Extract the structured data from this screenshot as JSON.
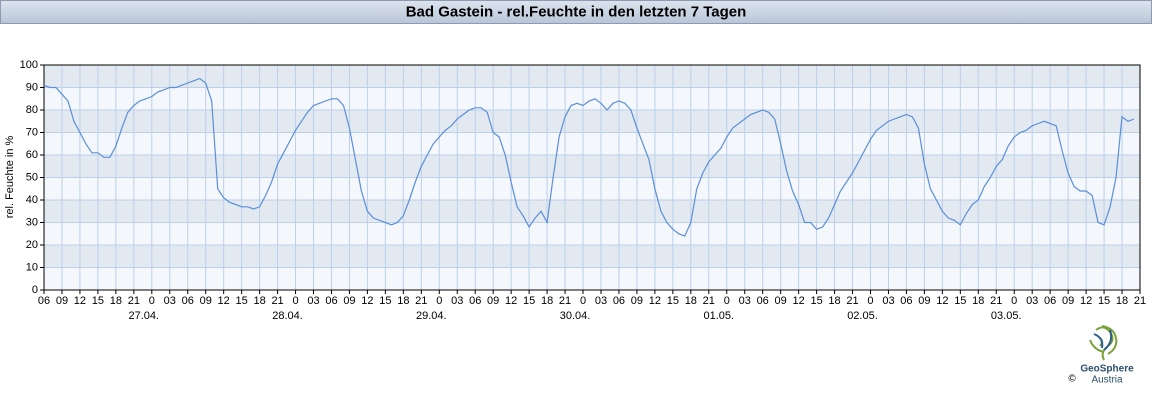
{
  "chart_data": {
    "type": "line",
    "title": "Bad Gastein - rel.Feuchte in den letzten 7 Tagen",
    "y_label": "rel. Feuchte in %",
    "xlim": [
      0,
      183
    ],
    "ylim": [
      0,
      100
    ],
    "yticks": [
      0,
      10,
      20,
      30,
      40,
      50,
      60,
      70,
      80,
      90,
      100
    ],
    "xticks": [
      {
        "value": 0,
        "label": "06"
      },
      {
        "value": 3,
        "label": "09"
      },
      {
        "value": 6,
        "label": "12"
      },
      {
        "value": 9,
        "label": "15"
      },
      {
        "value": 12,
        "label": "18"
      },
      {
        "value": 15,
        "label": "21"
      },
      {
        "value": 18,
        "label": "0"
      },
      {
        "value": 21,
        "label": "03"
      },
      {
        "value": 24,
        "label": "06"
      },
      {
        "value": 27,
        "label": "09"
      },
      {
        "value": 30,
        "label": "12"
      },
      {
        "value": 33,
        "label": "15"
      },
      {
        "value": 36,
        "label": "18"
      },
      {
        "value": 39,
        "label": "21"
      },
      {
        "value": 42,
        "label": "0"
      },
      {
        "value": 45,
        "label": "03"
      },
      {
        "value": 48,
        "label": "06"
      },
      {
        "value": 51,
        "label": "09"
      },
      {
        "value": 54,
        "label": "12"
      },
      {
        "value": 57,
        "label": "15"
      },
      {
        "value": 60,
        "label": "18"
      },
      {
        "value": 63,
        "label": "21"
      },
      {
        "value": 66,
        "label": "0"
      },
      {
        "value": 69,
        "label": "03"
      },
      {
        "value": 72,
        "label": "06"
      },
      {
        "value": 75,
        "label": "09"
      },
      {
        "value": 78,
        "label": "12"
      },
      {
        "value": 81,
        "label": "15"
      },
      {
        "value": 84,
        "label": "18"
      },
      {
        "value": 87,
        "label": "21"
      },
      {
        "value": 90,
        "label": "0"
      },
      {
        "value": 93,
        "label": "03"
      },
      {
        "value": 96,
        "label": "06"
      },
      {
        "value": 99,
        "label": "09"
      },
      {
        "value": 102,
        "label": "12"
      },
      {
        "value": 105,
        "label": "15"
      },
      {
        "value": 108,
        "label": "18"
      },
      {
        "value": 111,
        "label": "21"
      },
      {
        "value": 114,
        "label": "0"
      },
      {
        "value": 117,
        "label": "03"
      },
      {
        "value": 120,
        "label": "06"
      },
      {
        "value": 123,
        "label": "09"
      },
      {
        "value": 126,
        "label": "12"
      },
      {
        "value": 129,
        "label": "15"
      },
      {
        "value": 132,
        "label": "18"
      },
      {
        "value": 135,
        "label": "21"
      },
      {
        "value": 138,
        "label": "0"
      },
      {
        "value": 141,
        "label": "03"
      },
      {
        "value": 144,
        "label": "06"
      },
      {
        "value": 147,
        "label": "09"
      },
      {
        "value": 150,
        "label": "12"
      },
      {
        "value": 153,
        "label": "15"
      },
      {
        "value": 156,
        "label": "18"
      },
      {
        "value": 159,
        "label": "21"
      },
      {
        "value": 162,
        "label": "0"
      },
      {
        "value": 165,
        "label": "03"
      },
      {
        "value": 168,
        "label": "06"
      },
      {
        "value": 171,
        "label": "09"
      },
      {
        "value": 174,
        "label": "12"
      },
      {
        "value": 177,
        "label": "15"
      },
      {
        "value": 180,
        "label": "18"
      },
      {
        "value": 183,
        "label": "21"
      }
    ],
    "date_ticks": [
      {
        "value": 18,
        "label": "27.04."
      },
      {
        "value": 42,
        "label": "28.04."
      },
      {
        "value": 66,
        "label": "29.04."
      },
      {
        "value": 90,
        "label": "30.04."
      },
      {
        "value": 114,
        "label": "01.05."
      },
      {
        "value": 138,
        "label": "02.05."
      },
      {
        "value": 162,
        "label": "03.05."
      }
    ],
    "grid": true,
    "x": [
      0,
      1,
      2,
      3,
      4,
      5,
      6,
      7,
      8,
      9,
      10,
      11,
      12,
      13,
      14,
      15,
      16,
      17,
      18,
      19,
      20,
      21,
      22,
      23,
      24,
      25,
      26,
      27,
      28,
      29,
      30,
      31,
      32,
      33,
      34,
      35,
      36,
      37,
      38,
      39,
      40,
      41,
      42,
      43,
      44,
      45,
      46,
      47,
      48,
      49,
      50,
      51,
      52,
      53,
      54,
      55,
      56,
      57,
      58,
      59,
      60,
      61,
      62,
      63,
      64,
      65,
      66,
      67,
      68,
      69,
      70,
      71,
      72,
      73,
      74,
      75,
      76,
      77,
      78,
      79,
      80,
      81,
      82,
      83,
      84,
      85,
      86,
      87,
      88,
      89,
      90,
      91,
      92,
      93,
      94,
      95,
      96,
      97,
      98,
      99,
      100,
      101,
      102,
      103,
      104,
      105,
      106,
      107,
      108,
      109,
      110,
      111,
      112,
      113,
      114,
      115,
      116,
      117,
      118,
      119,
      120,
      121,
      122,
      123,
      124,
      125,
      126,
      127,
      128,
      129,
      130,
      131,
      132,
      133,
      134,
      135,
      136,
      137,
      138,
      139,
      140,
      141,
      142,
      143,
      144,
      145,
      146,
      147,
      148,
      149,
      150,
      151,
      152,
      153,
      154,
      155,
      156,
      157,
      158,
      159,
      160,
      161,
      162,
      163,
      164,
      165,
      166,
      167,
      168,
      169,
      170,
      171,
      172,
      173,
      174,
      175,
      176,
      177,
      178,
      179,
      180,
      181,
      182
    ],
    "series": [
      {
        "name": "rel. Feuchte",
        "color": "#5b8fd9",
        "values": [
          91,
          90,
          90,
          87,
          84,
          75,
          70,
          65,
          61,
          61,
          59,
          59,
          64,
          72,
          79,
          82,
          84,
          85,
          86,
          88,
          89,
          90,
          90,
          91,
          92,
          93,
          94,
          92,
          84,
          45,
          41,
          39,
          38,
          37,
          37,
          36,
          37,
          42,
          48,
          56,
          61,
          66,
          71,
          75,
          79,
          82,
          83,
          84,
          85,
          85,
          82,
          72,
          58,
          44,
          35,
          32,
          31,
          30,
          29,
          30,
          33,
          40,
          48,
          55,
          60,
          65,
          68,
          71,
          73,
          76,
          78,
          80,
          81,
          81,
          79,
          70,
          68,
          60,
          48,
          37,
          33,
          28,
          32,
          35,
          30,
          50,
          68,
          77,
          82,
          83,
          82,
          84,
          85,
          83,
          80,
          83,
          84,
          83,
          80,
          72,
          65,
          58,
          45,
          35,
          30,
          27,
          25,
          24,
          30,
          45,
          52,
          57,
          60,
          63,
          68,
          72,
          74,
          76,
          78,
          79,
          80,
          79,
          76,
          65,
          53,
          44,
          38,
          30,
          30,
          27,
          28,
          32,
          38,
          44,
          48,
          52,
          57,
          62,
          67,
          71,
          73,
          75,
          76,
          77,
          78,
          77,
          72,
          56,
          45,
          40,
          35,
          32,
          31,
          29,
          34,
          38,
          40,
          46,
          50,
          55,
          58,
          64,
          68,
          70,
          71,
          73,
          74,
          75,
          74,
          73,
          62,
          52,
          46,
          44,
          44,
          42,
          30,
          29,
          37,
          50,
          77,
          75,
          76
        ]
      }
    ]
  },
  "logo": {
    "name": "GeoSphere",
    "sub": "Austria",
    "copyright": "©"
  }
}
